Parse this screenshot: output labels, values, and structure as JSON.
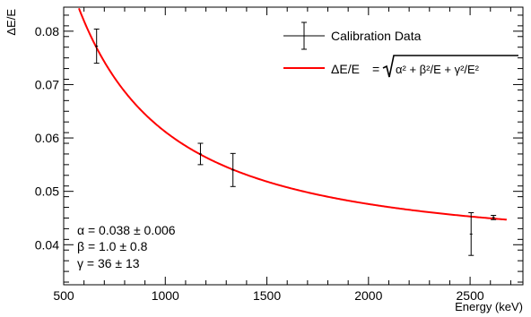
{
  "chart_data": {
    "type": "scatter",
    "xlabel": "Energy (keV)",
    "ylabel": "ΔE/E",
    "xlim": [
      500,
      2760
    ],
    "ylim": [
      0.0325,
      0.0845
    ],
    "x_ticks": [
      500,
      1000,
      1500,
      2000,
      2500
    ],
    "y_ticks": [
      0.04,
      0.05,
      0.06,
      0.07,
      0.08
    ],
    "x_tick_labels": [
      "500",
      "1000",
      "1500",
      "2000",
      "2500"
    ],
    "y_tick_labels": [
      "0.04",
      "0.05",
      "0.06",
      "0.07",
      "0.08"
    ],
    "grid": false,
    "legend_position": "top-right",
    "legend": {
      "data_label": "Calibration Data",
      "fit_label_lhs": "ΔE/E",
      "fit_label_eq": "=",
      "fit_formula": "α² + β²/E + γ²/E²"
    },
    "series": [
      {
        "name": "Calibration Data",
        "kind": "points_with_errors",
        "color": "#000000",
        "points": [
          {
            "x": 662,
            "y": 0.0772,
            "yerr": 0.0032
          },
          {
            "x": 1173,
            "y": 0.057,
            "yerr": 0.002
          },
          {
            "x": 1333,
            "y": 0.054,
            "yerr": 0.0031
          },
          {
            "x": 2505,
            "y": 0.042,
            "yerr": 0.004
          },
          {
            "x": 2615,
            "y": 0.0451,
            "yerr": 0.0004
          }
        ]
      },
      {
        "name": "ΔE/E",
        "kind": "fit_curve",
        "color": "#ff0000",
        "x_range": [
          500,
          2680
        ],
        "params": {
          "alpha": 0.038,
          "beta": 1.0,
          "gamma": 36
        }
      }
    ],
    "annotations": [
      "α = 0.038 ± 0.006",
      "β = 1.0 ± 0.8",
      "γ = 36 ± 13"
    ]
  }
}
